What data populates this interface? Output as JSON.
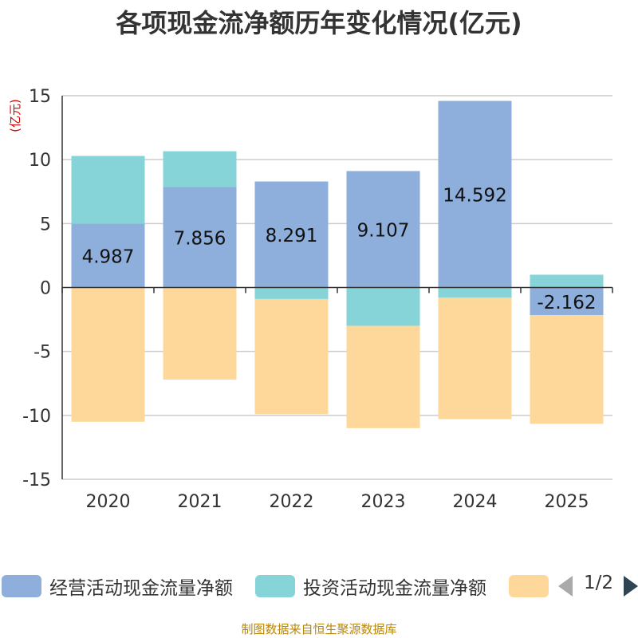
{
  "chart_data": {
    "type": "bar",
    "stacked": true,
    "title": "各项现金流净额历年变化情况(亿元)",
    "ylabel": "(亿元)",
    "xlabel": "",
    "ylim": [
      -15,
      15
    ],
    "yticks": [
      15,
      10,
      5,
      0,
      -5,
      -10,
      -15
    ],
    "categories": [
      "2020",
      "2021",
      "2022",
      "2023",
      "2024",
      "2025"
    ],
    "series": [
      {
        "name": "经营活动现金流量净额",
        "color": "#8eaedb",
        "values": [
          4.987,
          7.856,
          8.291,
          9.107,
          14.592,
          -2.162
        ],
        "labels": [
          "4.987",
          "7.856",
          "8.291",
          "9.107",
          "14.592",
          "-2.162"
        ]
      },
      {
        "name": "投资活动现金流量净额",
        "color": "#86d4d7",
        "values": [
          5.3,
          2.8,
          -0.9,
          -3.0,
          -0.8,
          1.0
        ]
      },
      {
        "name": "",
        "color": "#fed89b",
        "values": [
          -10.5,
          -7.2,
          -9.0,
          -8.0,
          -9.5,
          -8.5
        ]
      }
    ],
    "legend": "bottom",
    "grid": true
  },
  "pager": {
    "text": "1/2"
  },
  "source": "制图数据来自恒生聚源数据库"
}
